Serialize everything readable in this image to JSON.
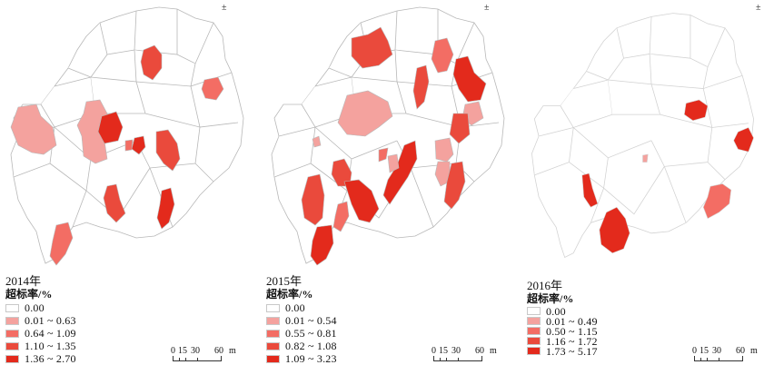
{
  "legend_title": "超标率/%",
  "north_symbol": "±",
  "scale": {
    "ticks": [
      "0",
      "15",
      "30",
      "60"
    ],
    "unit": "m"
  },
  "colors": {
    "c0": "#ffffff",
    "c1": "#f4a29e",
    "c2": "#f36d64",
    "c3": "#ea4a3c",
    "c4": "#e32a1c",
    "border": "#b8b8b8"
  },
  "maps": [
    {
      "year": "2014年",
      "classes": [
        "0.00",
        "0.01 ~ 0.63",
        "0.64 ~ 1.09",
        "1.10 ~ 1.35",
        "1.36 ~ 2.70"
      ]
    },
    {
      "year": "2015年",
      "classes": [
        "0.00",
        "0.01 ~ 0.54",
        "0.55 ~ 0.81",
        "0.82 ~ 1.08",
        "1.09 ~ 3.23"
      ]
    },
    {
      "year": "2016年",
      "classes": [
        "0.00",
        "0.01 ~ 0.49",
        "0.50 ~ 1.15",
        "1.16 ~ 1.72",
        "1.73 ~ 5.17"
      ]
    }
  ]
}
